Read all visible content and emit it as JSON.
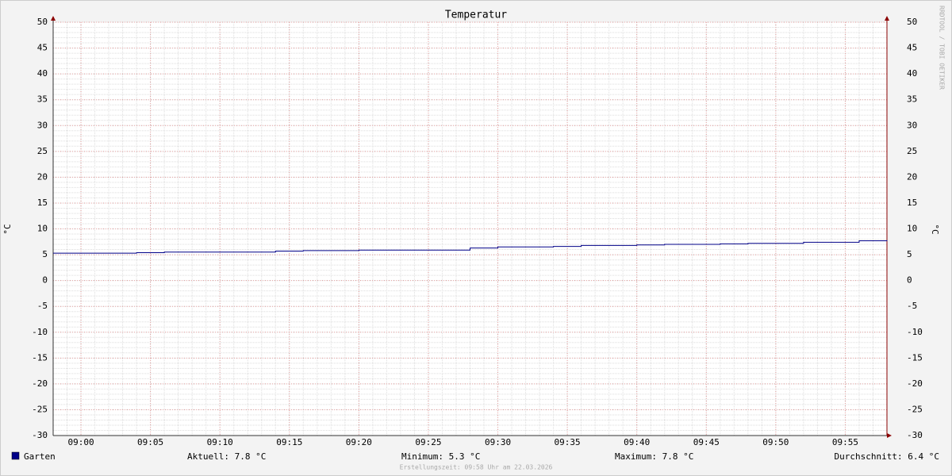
{
  "chart_data": {
    "type": "line",
    "title": "Temperatur",
    "y_label": "°C",
    "watermark": "RRDTOOL / TOBI OETIKER",
    "footer": "Erstellungszeit: 09:58 Uhr am 22.03.2026",
    "x": [
      "08:58",
      "09:04",
      "09:06",
      "09:14",
      "09:16",
      "09:20",
      "09:28",
      "09:30",
      "09:34",
      "09:36",
      "09:40",
      "09:42",
      "09:46",
      "09:48",
      "09:52",
      "09:56",
      "09:58"
    ],
    "series": [
      {
        "name": "Garten",
        "color": "#000088",
        "values": [
          5.3,
          5.4,
          5.5,
          5.7,
          5.8,
          5.9,
          6.3,
          6.5,
          6.6,
          6.8,
          6.9,
          7.0,
          7.1,
          7.2,
          7.4,
          7.7,
          7.8
        ]
      }
    ],
    "stats": [
      "Aktuell: 7.8 °C",
      "Minimum: 5.3 °C",
      "Maximum: 7.8 °C",
      "Durchschnitt: 6.4 °C"
    ],
    "step": true,
    "xlim": [
      "08:58",
      "09:58"
    ],
    "xticks": [
      "09:00",
      "09:05",
      "09:10",
      "09:15",
      "09:20",
      "09:25",
      "09:30",
      "09:35",
      "09:40",
      "09:45",
      "09:50",
      "09:55"
    ],
    "ylim": [
      -30,
      50
    ],
    "yticks": [
      -30,
      -25,
      -20,
      -15,
      -10,
      -5,
      0,
      5,
      10,
      15,
      20,
      25,
      30,
      35,
      40,
      45,
      50
    ],
    "grid": true
  }
}
